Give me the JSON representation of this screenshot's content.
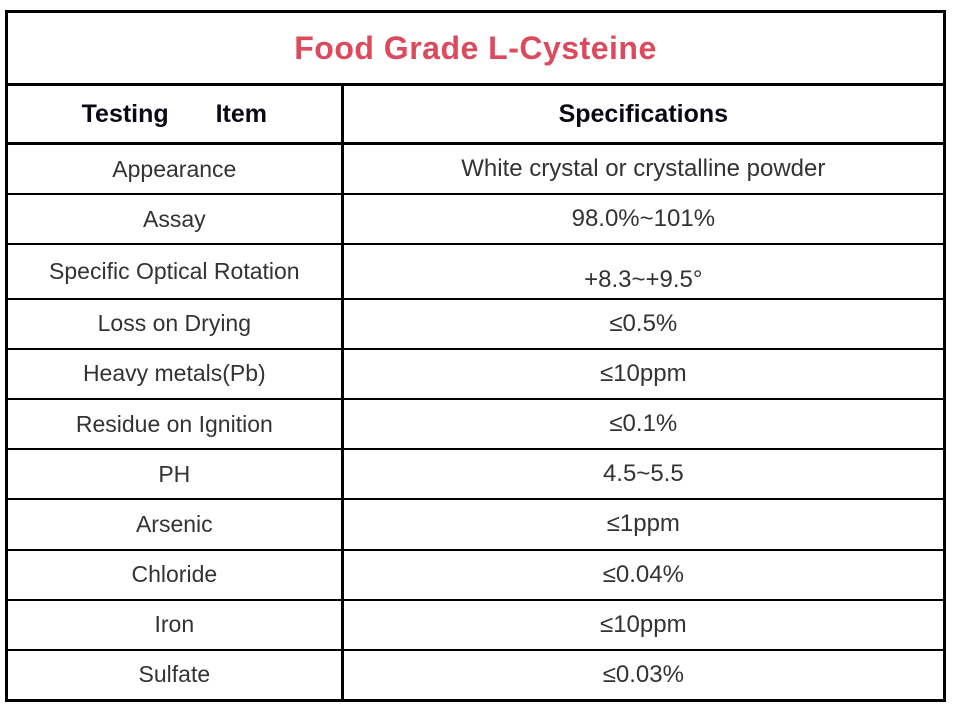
{
  "title": "Food Grade L-Cysteine",
  "title_color": "#dc4b5d",
  "border_color": "#000000",
  "table": {
    "headers": [
      "Testing Item",
      "Specifications"
    ],
    "rows": [
      {
        "item": "Appearance",
        "spec": "White crystal or crystalline powder"
      },
      {
        "item": "Assay",
        "spec": "98.0%~101%"
      },
      {
        "item": "Specific Optical Rotation",
        "spec": "+8.3~+9.5°"
      },
      {
        "item": "Loss on Drying",
        "spec": "≤0.5%"
      },
      {
        "item": "Heavy metals(Pb)",
        "spec": "≤10ppm"
      },
      {
        "item": "Residue on Ignition",
        "spec": "≤0.1%"
      },
      {
        "item": "PH",
        "spec": "4.5~5.5"
      },
      {
        "item": "Arsenic",
        "spec": "≤1ppm"
      },
      {
        "item": "Chloride",
        "spec": "≤0.04%"
      },
      {
        "item": "Iron",
        "spec": "≤10ppm"
      },
      {
        "item": "Sulfate",
        "spec": "≤0.03%"
      }
    ]
  }
}
